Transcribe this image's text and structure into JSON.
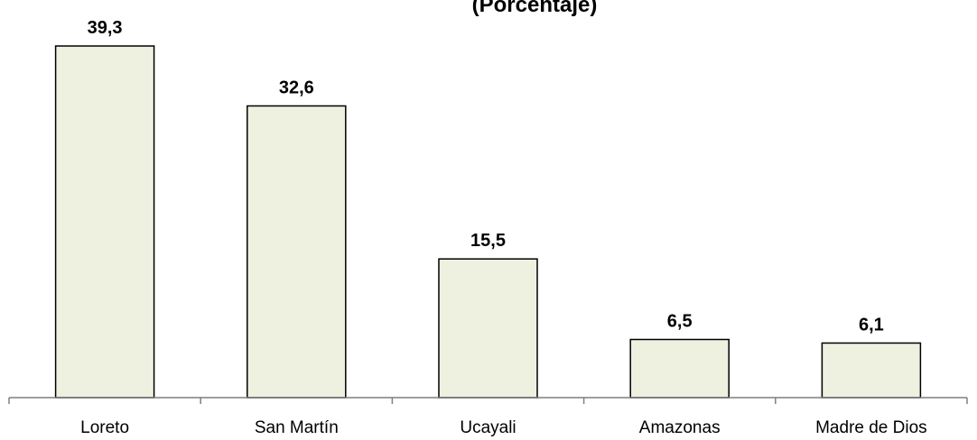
{
  "chart_data": {
    "type": "bar",
    "title": "(Porcentaje)",
    "categories": [
      "Loreto",
      "San Martín",
      "Ucayali",
      "Amazonas",
      "Madre de Dios"
    ],
    "values": [
      39.3,
      32.6,
      15.5,
      6.5,
      6.1
    ],
    "value_labels": [
      "39,3",
      "32,6",
      "15,5",
      "6,5",
      "6,1"
    ],
    "xlabel": "",
    "ylabel": "",
    "ylim": [
      0,
      40
    ],
    "grid": false,
    "legend": "none",
    "colors": {
      "bar_fill": "#EEF0E0",
      "bar_stroke": "#000000",
      "axis": "#7F7F7F"
    }
  }
}
